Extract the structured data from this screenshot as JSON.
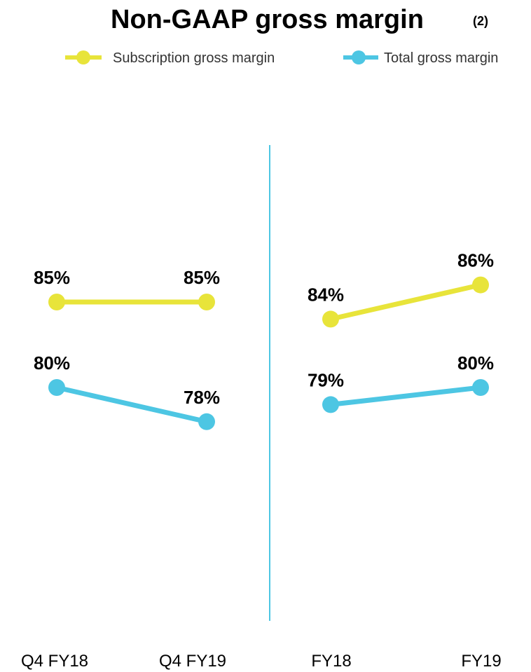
{
  "chart_data": {
    "type": "line",
    "title": "Non-GAAP gross margin",
    "title_superscript": "(2)",
    "legend": [
      "Subscription gross margin",
      "Total gross margin"
    ],
    "panels": [
      {
        "categories": [
          "Q4 FY18",
          "Q4 FY19"
        ],
        "series": [
          {
            "name": "Subscription gross margin",
            "values": [
              85,
              85
            ],
            "labels": [
              "85%",
              "85%"
            ]
          },
          {
            "name": "Total gross margin",
            "values": [
              80,
              78
            ],
            "labels": [
              "80%",
              "78%"
            ]
          }
        ]
      },
      {
        "categories": [
          "FY18",
          "FY19"
        ],
        "series": [
          {
            "name": "Subscription gross margin",
            "values": [
              84,
              86
            ],
            "labels": [
              "84%",
              "86%"
            ]
          },
          {
            "name": "Total gross margin",
            "values": [
              79,
              80
            ],
            "labels": [
              "79%",
              "80%"
            ]
          }
        ]
      }
    ],
    "colors": {
      "Subscription gross margin": "#E8E43A",
      "Total gross margin": "#4DC6E3",
      "divider": "#4DC6E3"
    },
    "grid": false,
    "legend_position": "top-right"
  }
}
